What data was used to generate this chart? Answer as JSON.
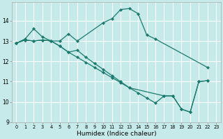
{
  "xlabel": "Humidex (Indice chaleur)",
  "xlim": [
    -0.5,
    23.5
  ],
  "ylim": [
    9.0,
    14.9
  ],
  "yticks": [
    9,
    10,
    11,
    12,
    13,
    14
  ],
  "xticks": [
    0,
    1,
    2,
    3,
    4,
    5,
    6,
    7,
    8,
    9,
    10,
    11,
    12,
    13,
    14,
    15,
    16,
    17,
    18,
    19,
    20,
    21,
    22,
    23
  ],
  "bg_color": "#c6e9e9",
  "grid_color": "#ffffff",
  "line_color": "#1a7a6e",
  "lines": [
    {
      "x": [
        0,
        1,
        2,
        3,
        4,
        5,
        6,
        7,
        10,
        11,
        12,
        13,
        14,
        15,
        16,
        22
      ],
      "y": [
        12.9,
        13.1,
        13.6,
        13.2,
        13.0,
        13.0,
        13.35,
        13.0,
        13.9,
        14.1,
        14.55,
        14.6,
        14.35,
        13.3,
        13.1,
        11.7
      ]
    },
    {
      "x": [
        0,
        1,
        2,
        3,
        4,
        5,
        6,
        7,
        8,
        9,
        10,
        11,
        12,
        13,
        14,
        15,
        16,
        17,
        18,
        19,
        20,
        21,
        22
      ],
      "y": [
        12.9,
        13.05,
        13.0,
        13.05,
        13.0,
        12.75,
        12.45,
        12.2,
        11.95,
        11.7,
        11.45,
        11.2,
        10.95,
        10.7,
        10.45,
        10.2,
        9.95,
        10.3,
        10.3,
        9.65,
        9.5,
        11.0,
        11.05
      ]
    },
    {
      "x": [
        0,
        1,
        2,
        3,
        4,
        5,
        6,
        7,
        8,
        9,
        10,
        11,
        12,
        13,
        17,
        18,
        19,
        20,
        21,
        22
      ],
      "y": [
        12.9,
        13.05,
        13.0,
        13.05,
        13.0,
        12.75,
        12.45,
        12.55,
        12.2,
        11.9,
        11.6,
        11.3,
        11.0,
        10.7,
        10.3,
        10.3,
        9.65,
        9.5,
        11.0,
        11.05
      ]
    }
  ]
}
